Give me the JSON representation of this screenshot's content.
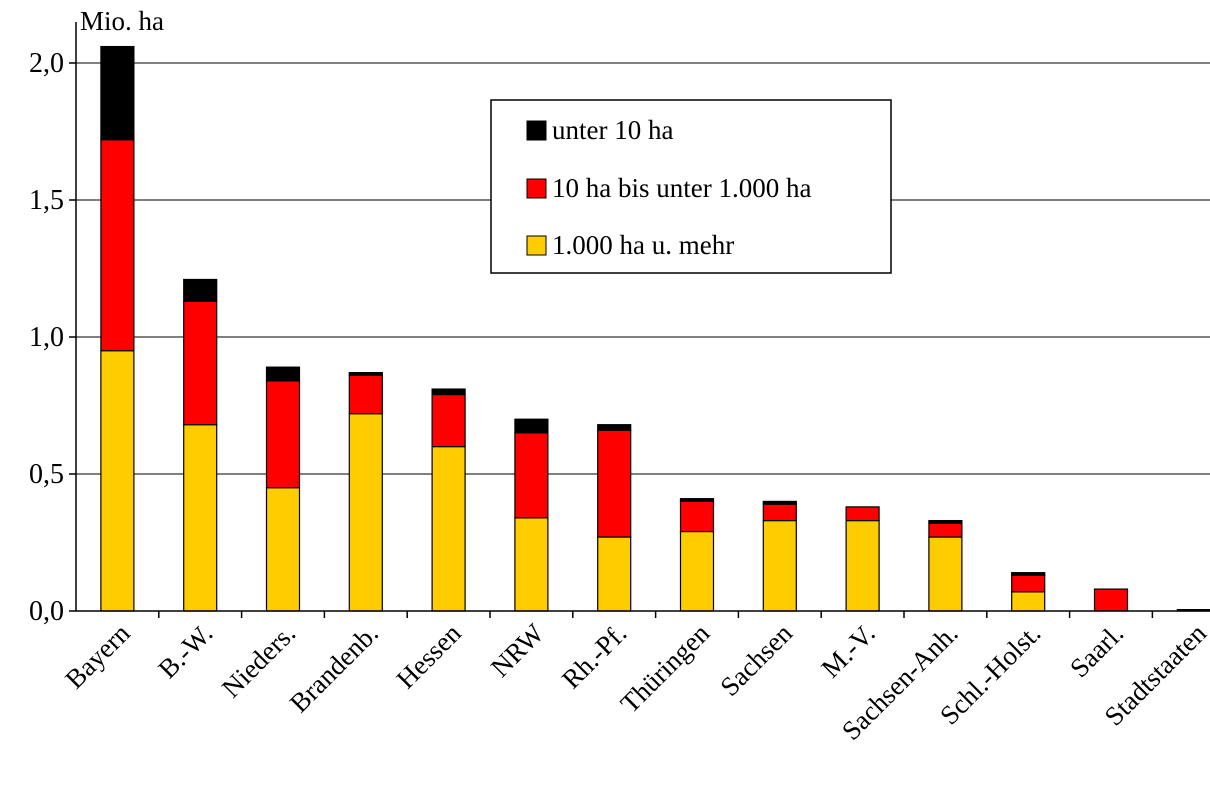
{
  "chart_data": {
    "type": "bar",
    "stacked": true,
    "y_unit_label": "Mio. ha",
    "ylim": [
      0,
      2.0
    ],
    "yticks": [
      "0,0",
      "0,5",
      "1,0",
      "1,5",
      "2,0"
    ],
    "ytick_values": [
      0,
      0.5,
      1.0,
      1.5,
      2.0
    ],
    "grid": true,
    "legend_position": "top-center",
    "categories": [
      "Bayern",
      "B.-W.",
      "Nieders.",
      "Brandenb.",
      "Hessen",
      "NRW",
      "Rh.-Pf.",
      "Thüringen",
      "Sachsen",
      "M.-V.",
      "Sachsen-Anh.",
      "Schl.-Holst.",
      "Saarl.",
      "Stadtstaaten"
    ],
    "series": [
      {
        "name": "1.000 ha u. mehr",
        "color": "#FFCC00",
        "values": [
          0.95,
          0.68,
          0.45,
          0.72,
          0.6,
          0.34,
          0.27,
          0.29,
          0.33,
          0.33,
          0.27,
          0.07,
          0.0,
          0.0
        ]
      },
      {
        "name": "10 ha bis unter 1.000 ha",
        "color": "#FF0000",
        "values": [
          0.77,
          0.45,
          0.39,
          0.14,
          0.19,
          0.31,
          0.39,
          0.11,
          0.06,
          0.05,
          0.05,
          0.06,
          0.08,
          0.0
        ]
      },
      {
        "name": "unter 10 ha",
        "color": "#000000",
        "values": [
          0.34,
          0.08,
          0.05,
          0.01,
          0.02,
          0.05,
          0.02,
          0.01,
          0.01,
          0.0,
          0.01,
          0.01,
          0.0,
          0.005
        ]
      }
    ],
    "legend_order": [
      "unter 10 ha",
      "10 ha bis unter 1.000 ha",
      "1.000 ha u. mehr"
    ]
  }
}
